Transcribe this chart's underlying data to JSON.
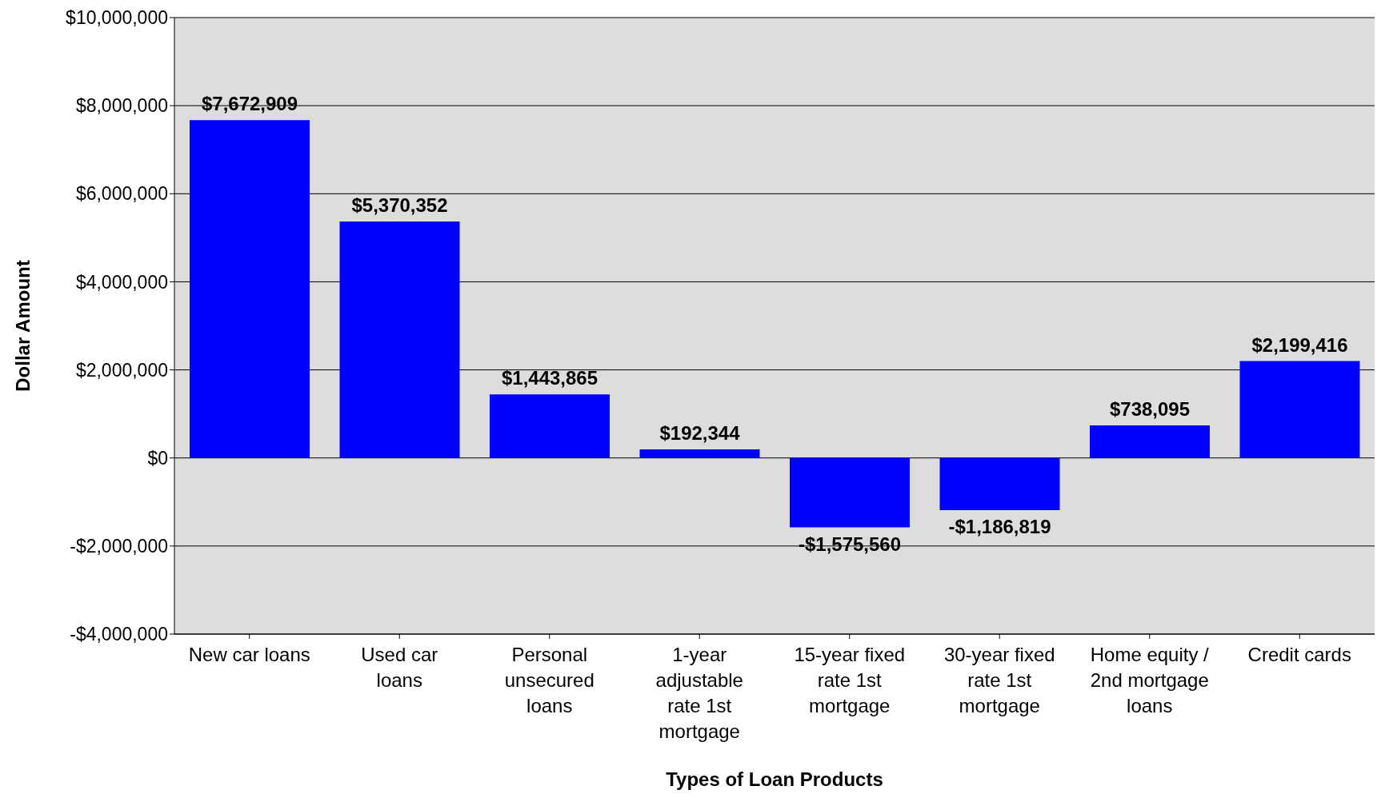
{
  "chart_data": {
    "type": "bar",
    "xlabel": "Types of Loan Products",
    "ylabel": "Dollar Amount",
    "categories": [
      "New car loans",
      "Used car loans",
      "Personal unsecured loans",
      "1-year adjustable rate 1st mortgage",
      "15-year fixed rate 1st mortgage",
      "30-year fixed rate 1st mortgage",
      "Home equity / 2nd mortgage loans",
      "Credit cards"
    ],
    "values": [
      7672909,
      5370352,
      1443865,
      192344,
      -1575560,
      -1186819,
      738095,
      2199416
    ],
    "value_labels": [
      "$7,672,909",
      "$5,370,352",
      "$1,443,865",
      "$192,344",
      "-$1,575,560",
      "-$1,186,819",
      "$738,095",
      "$2,199,416"
    ],
    "color": "#0000ff",
    "ylim": [
      -4000000,
      10000000
    ],
    "yticks": [
      {
        "value": -4000000,
        "label": "-$4,000,000"
      },
      {
        "value": -2000000,
        "label": "-$2,000,000"
      },
      {
        "value": 0,
        "label": "$0"
      },
      {
        "value": 2000000,
        "label": "$2,000,000"
      },
      {
        "value": 4000000,
        "label": "$4,000,000"
      },
      {
        "value": 6000000,
        "label": "$6,000,000"
      },
      {
        "value": 8000000,
        "label": "$8,000,000"
      },
      {
        "value": 10000000,
        "label": "$10,000,000"
      }
    ],
    "grid": "y",
    "legend": false
  }
}
